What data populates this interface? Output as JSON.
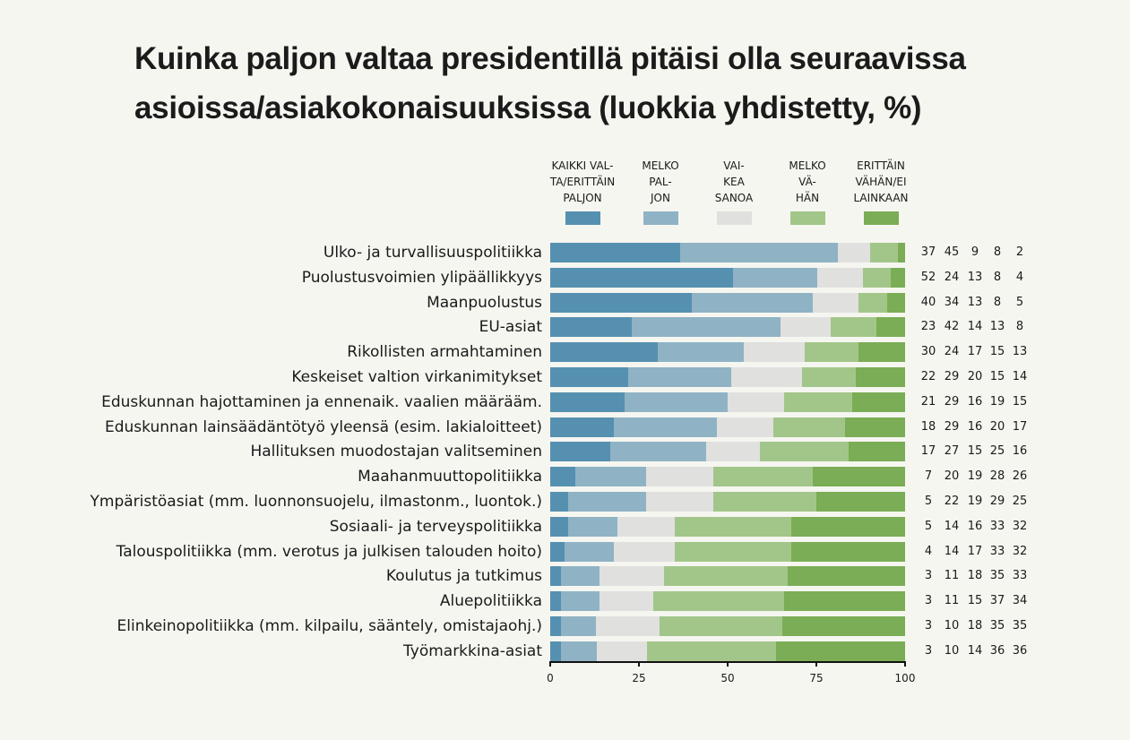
{
  "chart_data": {
    "type": "bar",
    "orientation": "horizontal",
    "stacked": true,
    "normalized": true,
    "title": "Kuinka paljon valtaa presidentillä pitäisi olla seuraavissa asioissa/asiakokonaisuuksissa (luokkia yhdistetty, %)",
    "title_lines": [
      "Kuinka paljon valtaa presidentillä pitäisi olla seuraavissa",
      "asioissa/asiakokonaisuuksissa (luokkia yhdistetty, %)"
    ],
    "xlabel": "",
    "ylabel": "",
    "xlim": [
      0,
      100
    ],
    "x_ticks": [
      "0",
      "25",
      "50",
      "75",
      "100"
    ],
    "legend_placement": "top",
    "series": [
      {
        "name": "KAIKKI VAL-\nTA/ERITTÄIN\nPALJON",
        "color": "#5690b0"
      },
      {
        "name": "MELKO\nPAL-\nJON",
        "color": "#8fb3c5"
      },
      {
        "name": "VAI-\nKEA\nSANOA",
        "color": "#e0e0df"
      },
      {
        "name": "MELKO\nVÄ-\nHÄN",
        "color": "#a2c689"
      },
      {
        "name": "ERITTÄIN\nVÄHÄN/EI\nLAINKAAN",
        "color": "#7aad55"
      }
    ],
    "categories": [
      "Ulko- ja turvallisuuspolitiikka",
      "Puolustusvoimien ylipäällikkyys",
      "Maanpuolustus",
      "EU-asiat",
      "Rikollisten armahtaminen",
      "Keskeiset valtion virkanimitykset",
      "Eduskunnan hajottaminen ja ennenaik. vaalien määrääm.",
      "Eduskunnan lainsäädäntötyö yleensä (esim. lakialoitteet)",
      "Hallituksen muodostajan valitseminen",
      "Maahanmuuttopolitiikka",
      "Ympäristöasiat (mm. luonnonsuojelu, ilmastonm., luontok.)",
      "Sosiaali- ja terveyspolitiikka",
      "Talouspolitiikka (mm. verotus ja julkisen talouden hoito)",
      "Koulutus ja tutkimus",
      "Aluepolitiikka",
      "Elinkeinopolitiikka (mm. kilpailu, sääntely, omistajaohj.)",
      "Työmarkkina-asiat"
    ],
    "values": [
      [
        37,
        45,
        9,
        8,
        2
      ],
      [
        52,
        24,
        13,
        8,
        4
      ],
      [
        40,
        34,
        13,
        8,
        5
      ],
      [
        23,
        42,
        14,
        13,
        8
      ],
      [
        30,
        24,
        17,
        15,
        13
      ],
      [
        22,
        29,
        20,
        15,
        14
      ],
      [
        21,
        29,
        16,
        19,
        15
      ],
      [
        18,
        29,
        16,
        20,
        17
      ],
      [
        17,
        27,
        15,
        25,
        16
      ],
      [
        7,
        20,
        19,
        28,
        26
      ],
      [
        5,
        22,
        19,
        29,
        25
      ],
      [
        5,
        14,
        16,
        33,
        32
      ],
      [
        4,
        14,
        17,
        33,
        32
      ],
      [
        3,
        11,
        18,
        35,
        33
      ],
      [
        3,
        11,
        15,
        37,
        34
      ],
      [
        3,
        10,
        18,
        35,
        35
      ],
      [
        3,
        10,
        14,
        36,
        36
      ]
    ]
  }
}
